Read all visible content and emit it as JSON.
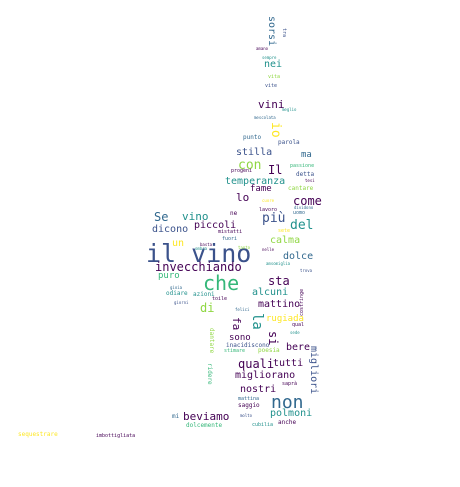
{
  "words": {
    "il_vino": "il vino",
    "non": "non",
    "che": "che",
    "invecchiando": "invecchiando",
    "la": "la",
    "quali": "quali",
    "beviamo": "beviamo",
    "migliorano": "migliorano",
    "piu": "più",
    "del": "del",
    "come": "come",
    "vino": "vino",
    "se": "Se",
    "piccoli": "piccoli",
    "dicono": "dicono",
    "sta": "sta",
    "fa": "fa",
    "io": "io",
    "con": "con",
    "il": "Il",
    "lo": "lo",
    "stilla": "stilla",
    "temperanza": "temperanza",
    "fame": "fame",
    "vini": "vini",
    "nei": "nei",
    "sorsi": "sorsi",
    "mattino": "mattino",
    "dolce": "dolce",
    "calma": "calma",
    "alcuni": "alcuni",
    "rugiada": "rugiada",
    "di": "di",
    "puro": "puro",
    "un": "un",
    "tutti": "tutti",
    "nostri": "nostri",
    "polmoni": "polmoni",
    "bere": "bere",
    "sono": "sono",
    "si": "si",
    "migliori": "migliori",
    "ma": "ma",
    "cantare": "cantare",
    "sequestrare": "sequestrare",
    "imbottigliata": "imbottigliata",
    "mi": "mi",
    "mattina": "mattina",
    "saggio": "saggio",
    "ridere": "ridere",
    "anche": "anche",
    "cubilia": "cubilia",
    "dolcemente": "dolcemente",
    "punto": "punto",
    "parola": "parola",
    "detta": "detta",
    "progeni": "progeni",
    "dividono": "dividono",
    "vita": "vita",
    "vite": "vite",
    "mescolata": "mescolata",
    "fuori": "fuori",
    "mistatti": "mistatti",
    "ne": "ne",
    "lavoro": "lavoro",
    "uomo": "uomo",
    "odiare": "odiare",
    "azioni": "azioni",
    "toile": "toile",
    "inacidiscono": "inacidiscono",
    "stimare": "stimare",
    "poesia": "poesia",
    "dantare": "dantare",
    "costringe": "costringe",
    "qual": "qual",
    "sede": "sede",
    "saprà": "saprà",
    "amsomiglia": "amsomiglia",
    "nelle": "nelle",
    "passione": "passione",
    "meglio": "meglio",
    "tesi": "tesi",
    "cuore": "cuore",
    "sete": "sete",
    "trova": "trova",
    "amano": "amano",
    "gioia": "gioia",
    "ombra": "ombra",
    "basta": "basta",
    "felici": "felici",
    "giorni": "giorni",
    "tanto": "tanto",
    "molto": "molto",
    "tra": "tra",
    "sempre": "sempre"
  },
  "colors": {
    "background": "#ffffff",
    "dark_purple": "#440154",
    "indigo": "#3b528b",
    "blue": "#31688e",
    "teal": "#21918c",
    "green": "#35b779",
    "lime": "#90d743",
    "yellow": "#fde725"
  }
}
